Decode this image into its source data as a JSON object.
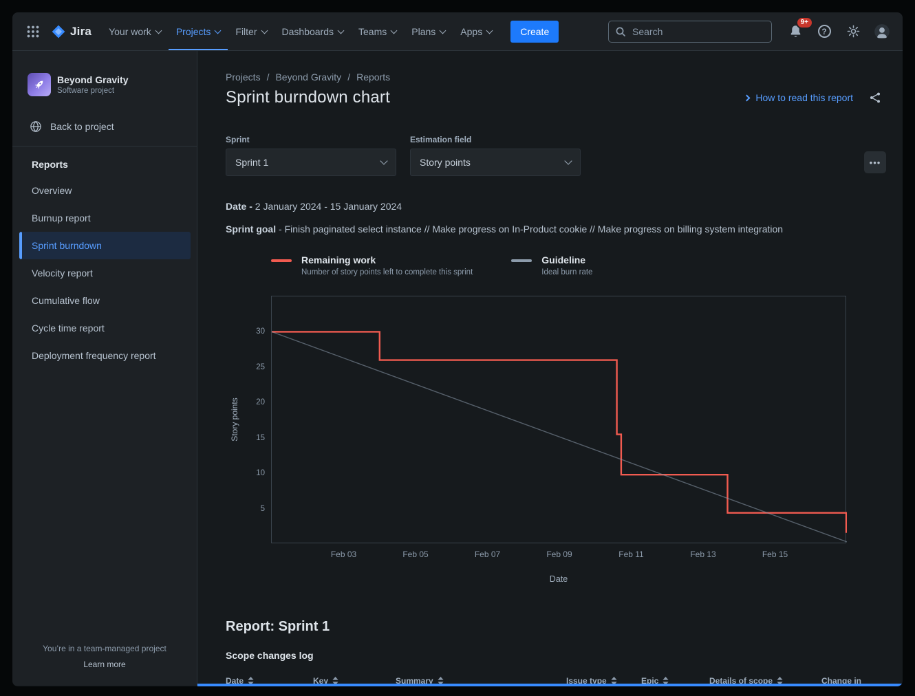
{
  "topnav": {
    "logo_text": "Jira",
    "nav_items": [
      {
        "label": "Your work"
      },
      {
        "label": "Projects"
      },
      {
        "label": "Filter"
      },
      {
        "label": "Dashboards"
      },
      {
        "label": "Teams"
      },
      {
        "label": "Plans"
      },
      {
        "label": "Apps"
      }
    ],
    "create_button": "Create",
    "search_placeholder": "Search",
    "notification_badge": "9+"
  },
  "icons": {
    "help_glyph": "?",
    "more_glyph": "•••"
  },
  "sidebar": {
    "project": {
      "name": "Beyond Gravity",
      "type": "Software project"
    },
    "back_link": "Back to project",
    "section": "Reports",
    "items": [
      {
        "label": "Overview"
      },
      {
        "label": "Burnup report"
      },
      {
        "label": "Sprint burndown"
      },
      {
        "label": "Velocity report"
      },
      {
        "label": "Cumulative flow"
      },
      {
        "label": "Cycle time report"
      },
      {
        "label": "Deployment frequency report"
      }
    ],
    "footer": {
      "note": "You’re in a team-managed project",
      "link": "Learn more"
    }
  },
  "main": {
    "breadcrumb": {
      "items": [
        "Projects",
        "Beyond Gravity",
        "Reports"
      ],
      "separator": "/"
    },
    "title": "Sprint burndown chart",
    "help_link": "How to read this report",
    "filters": {
      "sprint": {
        "label": "Sprint",
        "value": "Sprint 1"
      },
      "estimation": {
        "label": "Estimation field",
        "value": "Story points"
      }
    },
    "date": {
      "label": "Date -",
      "value": "2 January 2024 - 15 January 2024"
    },
    "sprint_goal": {
      "label": "Sprint goal",
      "value": "- Finish paginated select instance // Make progress on In-Product cookie // Make progress on billing system integration"
    },
    "report_heading": "Report: Sprint 1",
    "scope_log_heading": "Scope changes log",
    "table": {
      "columns": [
        "Date",
        "Key",
        "Summary",
        "Issue type",
        "Epic",
        "Details of scope",
        "Change in"
      ]
    }
  },
  "chart_data": {
    "type": "line",
    "title": "Sprint burndown",
    "xlabel": "Date",
    "ylabel": "Story points",
    "xlim_days": [
      1,
      17
    ],
    "ylim": [
      0,
      35
    ],
    "yticks": [
      30,
      25,
      20,
      15,
      10,
      5
    ],
    "xticks": [
      {
        "day": 3,
        "label": "Feb 03"
      },
      {
        "day": 5,
        "label": "Feb 05"
      },
      {
        "day": 7,
        "label": "Feb 07"
      },
      {
        "day": 9,
        "label": "Feb 09"
      },
      {
        "day": 11,
        "label": "Feb 11"
      },
      {
        "day": 13,
        "label": "Feb 13"
      },
      {
        "day": 15,
        "label": "Feb 15"
      }
    ],
    "grid": false,
    "legend_position": "top",
    "series": [
      {
        "name": "Remaining work",
        "description": "Number of story points left to complete this sprint",
        "color": "#F15B50",
        "points": [
          [
            1,
            30
          ],
          [
            4,
            30
          ],
          [
            4,
            26
          ],
          [
            10.6,
            26
          ],
          [
            10.6,
            15.5
          ],
          [
            10.72,
            15.5
          ],
          [
            10.72,
            9.8
          ],
          [
            13.68,
            9.8
          ],
          [
            13.68,
            4.4
          ],
          [
            16.98,
            4.4
          ],
          [
            16.98,
            1.7
          ]
        ]
      },
      {
        "name": "Guideline",
        "description": "Ideal burn rate",
        "color": "#8C9BAB",
        "points": [
          [
            1,
            30
          ],
          [
            17,
            0.3
          ]
        ]
      }
    ]
  },
  "colors": {
    "accent_blue": "#579DFF",
    "create_blue": "#1D7AFC",
    "badge_red": "#C9372C",
    "remaining_red": "#F15B50",
    "guideline_gray": "#8C9BAB",
    "bottom_accent": "#388BFF"
  }
}
